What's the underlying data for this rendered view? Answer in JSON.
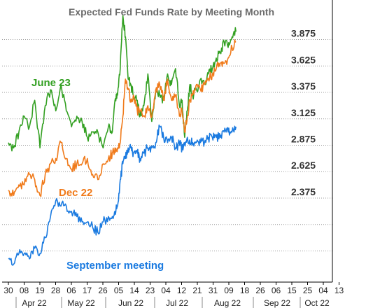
{
  "chart_data": {
    "type": "line",
    "title": "Expected Fed Funds Rate by Meeting Month",
    "xlabel": "",
    "ylabel": "",
    "x_ticks": [
      "30",
      "08",
      "19",
      "28",
      "06",
      "17",
      "26",
      "05",
      "14",
      "23",
      "04",
      "12",
      "21",
      "31",
      "09",
      "18",
      "26",
      "06",
      "15",
      "25",
      "04",
      "13"
    ],
    "month_labels": [
      "Apr 22",
      "May 22",
      "Jun 22",
      "Jul 22",
      "Aug 22",
      "Sep 22",
      "Oct 22"
    ],
    "y_ticks": [
      "3.875",
      "3.625",
      "3.375",
      "3.125",
      "2.875",
      "2.625",
      "2.375"
    ],
    "ylim": [
      1.6,
      4.15
    ],
    "xlim": [
      0,
      21.6
    ],
    "grid": "horizontal dotted",
    "series": [
      {
        "name": "June 23",
        "color": "#33a022",
        "x": [
          0,
          0.4,
          0.8,
          1.2,
          1.6,
          2,
          2.4,
          2.8,
          3.2,
          3.6,
          4,
          4.4,
          4.8,
          5.2,
          5.6,
          6,
          6.4,
          6.8,
          7.2,
          7.6,
          7.9,
          8.1,
          8.3,
          8.5,
          8.7,
          8.9,
          9.1,
          9.3,
          9.5,
          9.8,
          10,
          10.3,
          10.6,
          10.9,
          11.2,
          11.5,
          11.8,
          12.1,
          12.4,
          12.7,
          13,
          13.2,
          13.4,
          13.6,
          13.8,
          14,
          14.3,
          14.6,
          14.9,
          15.2,
          15.5,
          15.8,
          16.1,
          16.4,
          16.7,
          17,
          17.3
        ],
        "values": [
          2.9,
          2.85,
          3.0,
          3.15,
          3.05,
          3.3,
          2.85,
          3.25,
          3.4,
          3.2,
          3.45,
          3.2,
          3.05,
          3.15,
          3.1,
          2.95,
          3.0,
          3.0,
          2.85,
          3.05,
          3.0,
          3.3,
          3.35,
          3.6,
          4.1,
          3.9,
          3.5,
          3.45,
          3.35,
          3.3,
          3.15,
          3.25,
          3.55,
          3.1,
          3.4,
          3.35,
          3.3,
          3.55,
          3.45,
          3.6,
          3.25,
          3.3,
          2.95,
          3.2,
          3.45,
          3.35,
          3.4,
          3.5,
          3.45,
          3.55,
          3.6,
          3.7,
          3.75,
          3.85,
          3.8,
          3.9,
          3.95
        ]
      },
      {
        "name": "Dec 22",
        "color": "#f07a1a",
        "x": [
          0,
          0.4,
          0.8,
          1.2,
          1.6,
          2,
          2.4,
          2.8,
          3.2,
          3.6,
          4,
          4.4,
          4.8,
          5.2,
          5.6,
          6,
          6.4,
          6.8,
          7.2,
          7.6,
          7.9,
          8.1,
          8.3,
          8.5,
          8.7,
          8.9,
          9.1,
          9.3,
          9.5,
          9.8,
          10,
          10.3,
          10.6,
          10.9,
          11.2,
          11.5,
          11.8,
          12.1,
          12.4,
          12.7,
          13,
          13.2,
          13.4,
          13.6,
          13.8,
          14,
          14.3,
          14.6,
          14.9,
          15.2,
          15.5,
          15.8,
          16.1,
          16.4,
          16.7,
          17,
          17.3
        ],
        "values": [
          2.45,
          2.4,
          2.5,
          2.5,
          2.6,
          2.55,
          2.4,
          2.6,
          2.7,
          2.75,
          2.9,
          2.75,
          2.65,
          2.7,
          2.7,
          2.75,
          2.6,
          2.55,
          2.7,
          2.75,
          2.8,
          2.85,
          2.85,
          2.9,
          3.15,
          3.5,
          3.4,
          3.3,
          3.35,
          3.2,
          3.2,
          3.15,
          3.25,
          3.15,
          3.4,
          3.45,
          3.3,
          3.5,
          3.3,
          3.35,
          3.15,
          3.2,
          3.0,
          3.15,
          3.3,
          3.35,
          3.45,
          3.4,
          3.45,
          3.5,
          3.55,
          3.6,
          3.65,
          3.65,
          3.7,
          3.8,
          3.85
        ]
      },
      {
        "name": "September meeting",
        "color": "#1a7ae0",
        "x": [
          0,
          0.4,
          0.8,
          1.2,
          1.6,
          2,
          2.4,
          2.8,
          3.2,
          3.6,
          4,
          4.4,
          4.8,
          5.2,
          5.6,
          6,
          6.4,
          6.8,
          7.2,
          7.6,
          7.9,
          8.1,
          8.3,
          8.5,
          8.7,
          8.9,
          9.1,
          9.3,
          9.5,
          9.8,
          10,
          10.3,
          10.6,
          10.9,
          11.2,
          11.5,
          11.8,
          12.1,
          12.4,
          12.7,
          13,
          13.2,
          13.4,
          13.6,
          13.8,
          14,
          14.3,
          14.6,
          14.9,
          15.2,
          15.5,
          15.8,
          16.1,
          16.4,
          16.7,
          17,
          17.3
        ],
        "values": [
          1.8,
          1.75,
          1.85,
          1.85,
          1.8,
          1.9,
          1.85,
          2.0,
          2.2,
          2.35,
          2.3,
          2.3,
          2.25,
          2.2,
          2.15,
          2.15,
          2.1,
          2.05,
          2.15,
          2.2,
          2.2,
          2.25,
          2.3,
          2.55,
          2.7,
          2.75,
          2.85,
          2.85,
          2.8,
          2.8,
          2.75,
          2.8,
          2.85,
          2.85,
          2.9,
          3.05,
          2.95,
          2.9,
          2.95,
          2.85,
          2.9,
          2.85,
          2.9,
          2.95,
          2.9,
          2.9,
          2.9,
          2.9,
          2.9,
          2.95,
          2.95,
          2.95,
          2.95,
          3.0,
          3.0,
          3.0,
          3.05
        ]
      }
    ],
    "annotations": {
      "june23": "June 23",
      "dec22": "Dec 22",
      "sept": "September meeting"
    }
  }
}
